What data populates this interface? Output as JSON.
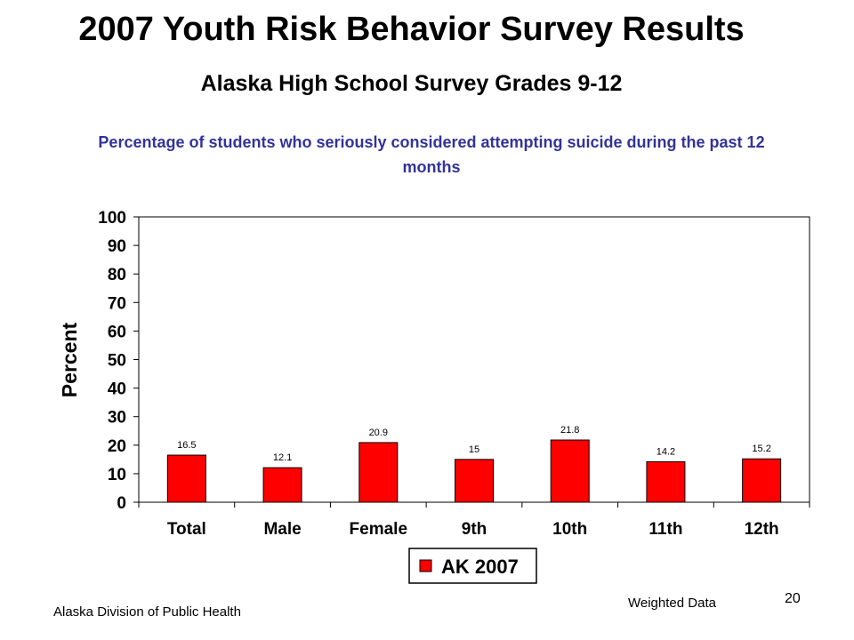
{
  "slide": {
    "title": "2007 Youth Risk Behavior Survey Results",
    "subtitle": "Alaska High School Survey Grades 9-12",
    "footer_left": "Alaska Division of Public Health",
    "footer_right": "Weighted Data",
    "page_number": "20"
  },
  "chart_data": {
    "type": "bar",
    "title": "Percentage of students who seriously considered attempting suicide during the past 12 months",
    "xlabel": "",
    "ylabel": "Percent",
    "categories": [
      "Total",
      "Male",
      "Female",
      "9th",
      "10th",
      "11th",
      "12th"
    ],
    "series": [
      {
        "name": "AK 2007",
        "values": [
          16.5,
          12.1,
          20.9,
          15,
          21.8,
          14.2,
          15.2
        ],
        "color": "#ff0000"
      }
    ],
    "data_labels": [
      "16.5",
      "12.1",
      "20.9",
      "15",
      "21.8",
      "14.2",
      "15.2"
    ],
    "ylim": [
      0,
      100
    ],
    "yticks": [
      0,
      10,
      20,
      30,
      40,
      50,
      60,
      70,
      80,
      90,
      100
    ],
    "grid": false,
    "legend_position": "bottom-right"
  }
}
